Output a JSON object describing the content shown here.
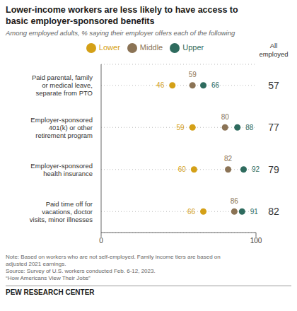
{
  "chart_data": {
    "type": "scatter",
    "title": "Lower-income workers are less likely to have access to\nbasic employer-sponsored benefits",
    "subtitle": "Among employed adults, % saying their employer offers each of the following",
    "categories": [
      "Paid time off for\nvacations, doctor\nvisits, minor illnesses",
      "Employer-sponsored\nhealth insurance",
      "Employer-sponsored\n401(k) or other\nretirement program",
      "Paid parental, family\nor medical leave,\nseparate from PTO"
    ],
    "series": [
      {
        "name": "Lower",
        "color": "#D4A017",
        "values": [
          66,
          60,
          59,
          46
        ]
      },
      {
        "name": "Middle",
        "color": "#8B7355",
        "values": [
          86,
          82,
          80,
          59
        ]
      },
      {
        "name": "Upper",
        "color": "#2E6B5E",
        "values": [
          91,
          92,
          88,
          66
        ]
      }
    ],
    "xlim": [
      0,
      100
    ],
    "xticks": [
      0,
      100
    ],
    "grid": true,
    "data_labels": true,
    "legend": "top",
    "side_column": {
      "label": "All\nemployed",
      "values": [
        82,
        79,
        77,
        57
      ]
    },
    "notes": [
      "Note: Based on workers who are not self-employed. Family income tiers are based on",
      "adjusted 2021 earnings.",
      "Source: Survey of U.S. workers conducted Feb. 6-12, 2023.",
      "“How Americans View Their Jobs”"
    ],
    "footer": "PEW RESEARCH CENTER"
  }
}
